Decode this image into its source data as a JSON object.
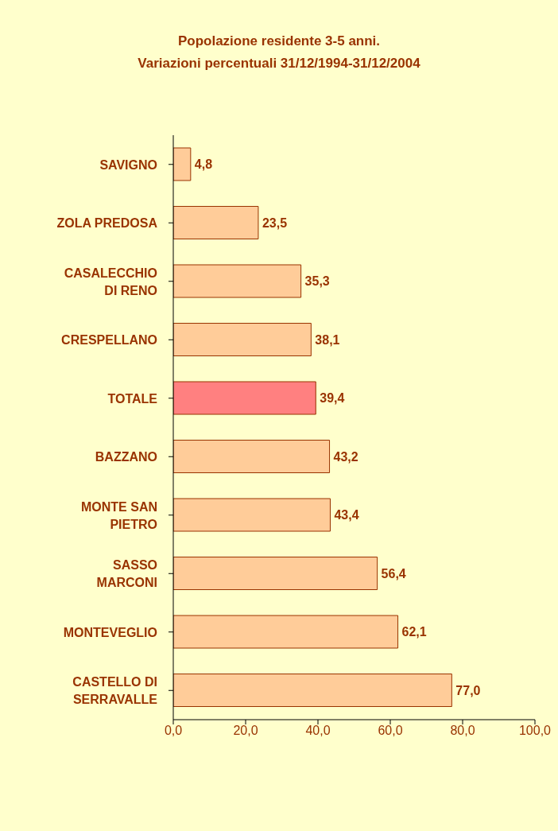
{
  "chart_data": {
    "type": "bar",
    "orientation": "horizontal",
    "title": "Popolazione residente 3-5 anni.",
    "subtitle": "Variazioni percentuali 31/12/1994-31/12/2004",
    "categories": [
      "SAVIGNO",
      "ZOLA PREDOSA",
      "CASALECCHIO DI RENO",
      "CRESPELLANO",
      "TOTALE",
      "BAZZANO",
      "MONTE SAN PIETRO",
      "SASSO MARCONI",
      "MONTEVEGLIO",
      "CASTELLO DI SERRAVALLE"
    ],
    "values": [
      4.8,
      23.5,
      35.3,
      38.1,
      39.4,
      43.2,
      43.4,
      56.4,
      62.1,
      77.0
    ],
    "colors": [
      "#ffcc99",
      "#ffcc99",
      "#ffcc99",
      "#ffcc99",
      "#ff8080",
      "#ffcc99",
      "#ffcc99",
      "#ffcc99",
      "#ffcc99",
      "#ffcc99"
    ],
    "value_labels": [
      "4,8",
      "23,5",
      "35,3",
      "38,1",
      "39,4",
      "43,2",
      "43,4",
      "56,4",
      "62,1",
      "77,0"
    ],
    "xlim": [
      0,
      100
    ],
    "xticks": [
      {
        "value": 0,
        "label": "0,0"
      },
      {
        "value": 20,
        "label": "20,0"
      },
      {
        "value": 40,
        "label": "40,0"
      },
      {
        "value": 60,
        "label": "60,0"
      },
      {
        "value": 80,
        "label": "80,0"
      },
      {
        "value": 100,
        "label": "100,0"
      }
    ],
    "grid": false,
    "legend": false
  }
}
